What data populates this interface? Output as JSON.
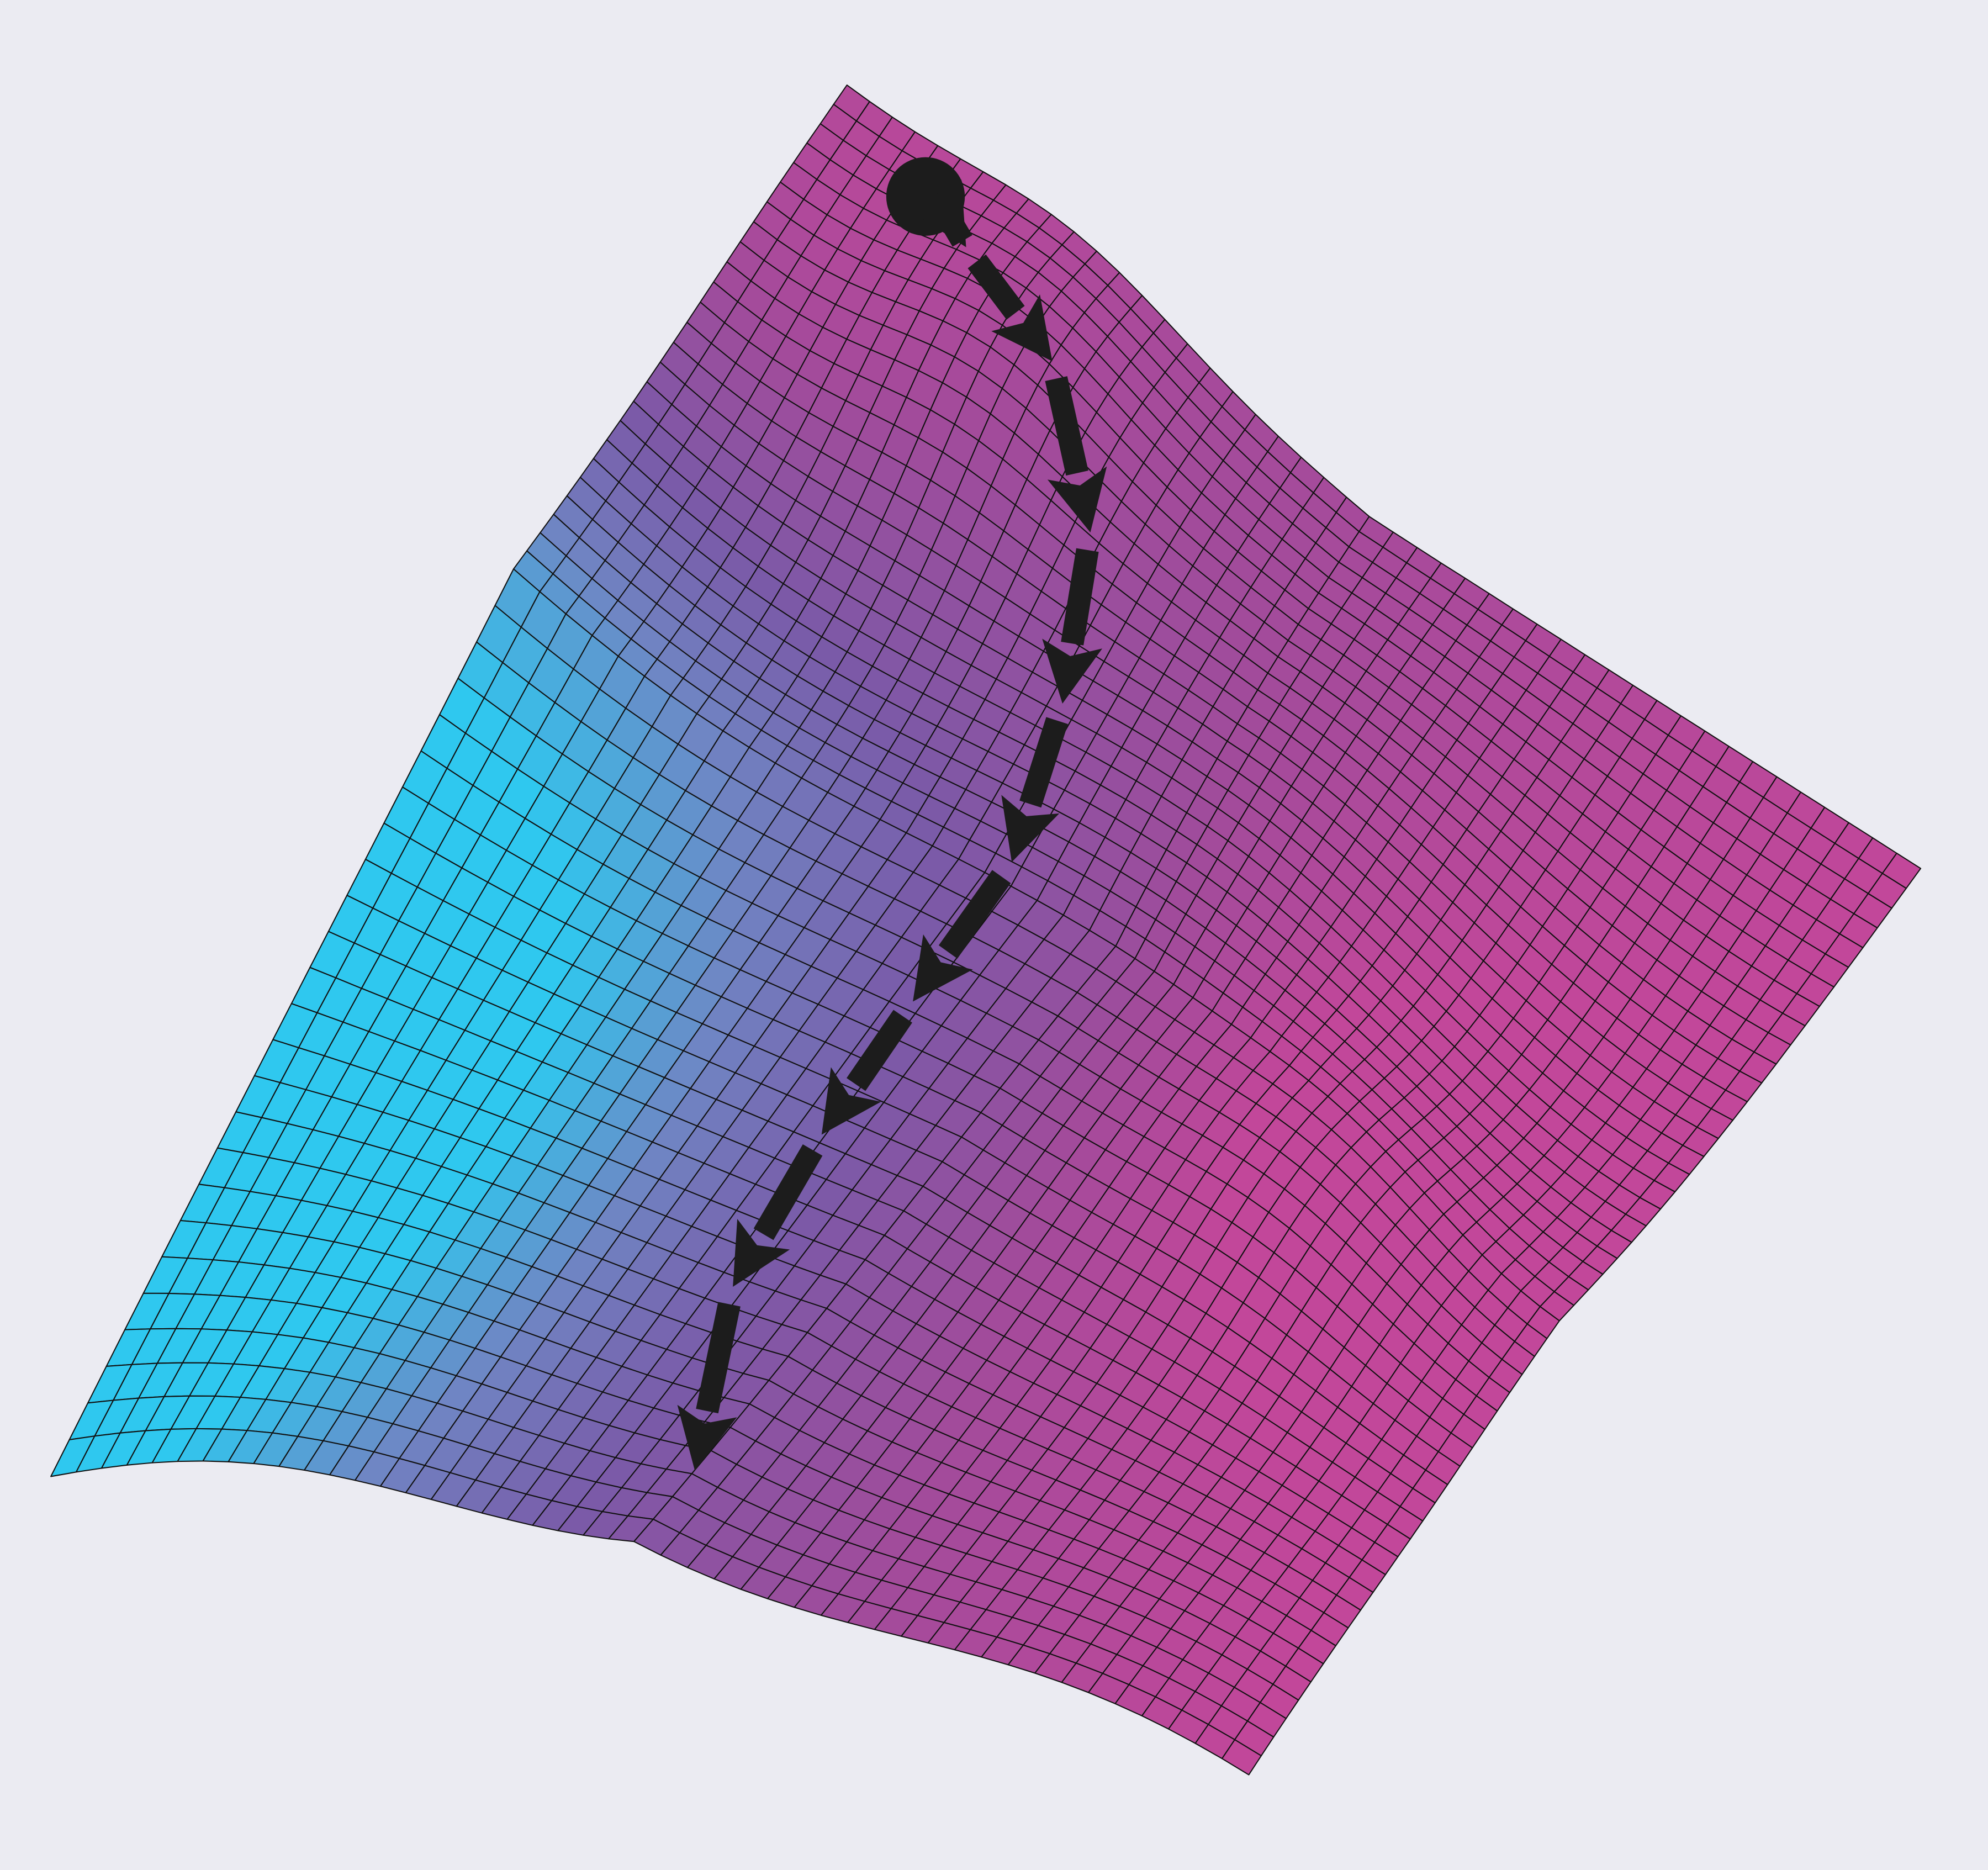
{
  "figure": {
    "background_color": "#ebebf2",
    "colormap": [
      "#2fc8ef",
      "#6f86c4",
      "#7a5aa8",
      "#a24b9b",
      "#c2479a"
    ],
    "grid_line_color": "#111111",
    "path_color": "#1c1c1c",
    "start_marker": "filled-circle",
    "arrow_count": 9
  }
}
